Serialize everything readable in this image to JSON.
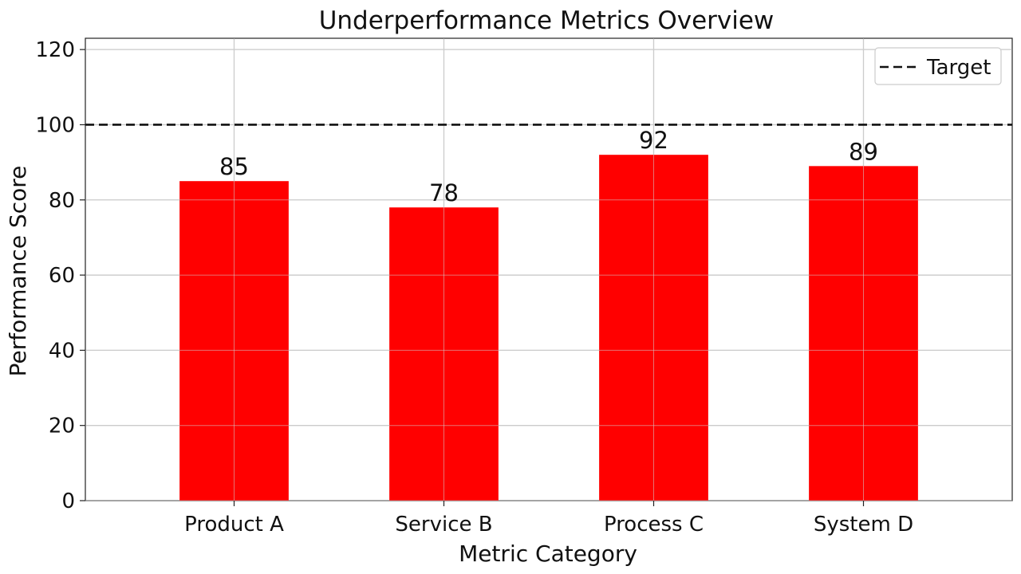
{
  "chart_data": {
    "type": "bar",
    "title": "Underperformance Metrics Overview",
    "xlabel": "Metric Category",
    "ylabel": "Performance Score",
    "categories": [
      "Product A",
      "Service B",
      "Process C",
      "System D"
    ],
    "values": [
      85,
      78,
      92,
      89
    ],
    "data_labels": [
      "85",
      "78",
      "92",
      "89"
    ],
    "ylim": [
      0,
      123
    ],
    "yticks": [
      0,
      20,
      40,
      60,
      80,
      100,
      120
    ],
    "ytick_labels": [
      "0",
      "20",
      "40",
      "60",
      "80",
      "100",
      "120"
    ],
    "reference_line": {
      "label": "Target",
      "value": 100,
      "style": "dashed",
      "color": "#111111"
    },
    "bar_color": "#ff0000",
    "grid": true,
    "legend": {
      "position": "top-right",
      "entries": [
        "Target"
      ]
    }
  }
}
